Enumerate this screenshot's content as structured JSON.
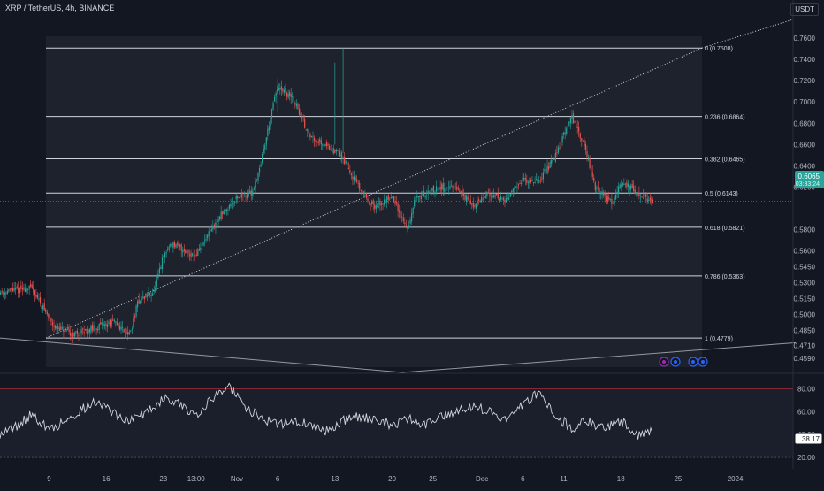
{
  "header": {
    "title": "XRP / TetherUS, 4h, BINANCE",
    "currency": "USDT"
  },
  "price_label": {
    "value": "0.6065",
    "countdown": "03:33:24",
    "color": "#26a69a"
  },
  "rsi_label": {
    "value": "38.17"
  },
  "colors": {
    "background": "#131722",
    "up": "#26a69a",
    "down": "#ef5350",
    "fib_zone": "#1e222d",
    "line": "#d1d4dc",
    "rsi_upper": "#f23645"
  },
  "events": [
    {
      "icon": "lightning-icon",
      "color": "#9c27b0"
    },
    {
      "icon": "flag-us-icon",
      "color": "#2962ff"
    },
    {
      "icon": "flag-us-icon",
      "color": "#2962ff"
    },
    {
      "icon": "flag-us-icon",
      "color": "#2962ff"
    }
  ],
  "chart_data": [
    {
      "type": "candlestick",
      "title": "XRP / TetherUS, 4h, BINANCE",
      "ylim": [
        0.4505,
        0.7776
      ],
      "yticks": [
        "0.7600",
        "0.7400",
        "0.7200",
        "0.7000",
        "0.6800",
        "0.6600",
        "0.6400",
        "0.6200",
        "0.5800",
        "0.5600",
        "0.5450",
        "0.5300",
        "0.5150",
        "0.5000",
        "0.4850",
        "0.4710",
        "0.4590"
      ],
      "xticks": [
        "9",
        "16",
        "23",
        "13:00",
        "Nov",
        "6",
        "13",
        "20",
        "25",
        "Dec",
        "6",
        "11",
        "18",
        "25",
        "2024"
      ],
      "fib_levels": [
        {
          "label": "0 (0.7508)",
          "value": 0.7508
        },
        {
          "label": "0.236 (0.6864)",
          "value": 0.6864
        },
        {
          "label": "0.382 (0.6465)",
          "value": 0.6465
        },
        {
          "label": "0.5 (0.6143)",
          "value": 0.6143
        },
        {
          "label": "0.618 (0.5821)",
          "value": 0.5821
        },
        {
          "label": "0.786 (0.5363)",
          "value": 0.5363
        },
        {
          "label": "1 (0.4779)",
          "value": 0.4779
        }
      ],
      "last_price": 0.6065,
      "price_path": [
        {
          "date": "2023-10-03",
          "close": 0.521
        },
        {
          "date": "2023-10-07",
          "close": 0.525
        },
        {
          "date": "2023-10-09",
          "close": 0.498
        },
        {
          "date": "2023-10-10",
          "close": 0.487
        },
        {
          "date": "2023-10-12",
          "close": 0.481
        },
        {
          "date": "2023-10-15",
          "close": 0.488
        },
        {
          "date": "2023-10-17",
          "close": 0.493
        },
        {
          "date": "2023-10-19",
          "close": 0.481
        },
        {
          "date": "2023-10-20",
          "close": 0.512
        },
        {
          "date": "2023-10-22",
          "close": 0.522
        },
        {
          "date": "2023-10-23",
          "close": 0.552
        },
        {
          "date": "2023-10-24",
          "close": 0.567
        },
        {
          "date": "2023-10-27",
          "close": 0.555
        },
        {
          "date": "2023-10-30",
          "close": 0.592
        },
        {
          "date": "2023-11-01",
          "close": 0.61
        },
        {
          "date": "2023-11-03",
          "close": 0.615
        },
        {
          "date": "2023-11-04",
          "close": 0.642
        },
        {
          "date": "2023-11-06",
          "close": 0.713
        },
        {
          "date": "2023-11-08",
          "close": 0.703
        },
        {
          "date": "2023-11-10",
          "close": 0.668
        },
        {
          "date": "2023-11-12",
          "close": 0.66
        },
        {
          "date": "2023-11-14",
          "close": 0.648
        },
        {
          "date": "2023-11-16",
          "close": 0.62
        },
        {
          "date": "2023-11-18",
          "close": 0.6
        },
        {
          "date": "2023-11-20",
          "close": 0.612
        },
        {
          "date": "2023-11-22",
          "close": 0.58
        },
        {
          "date": "2023-11-23",
          "close": 0.61
        },
        {
          "date": "2023-11-26",
          "close": 0.62
        },
        {
          "date": "2023-11-28",
          "close": 0.618
        },
        {
          "date": "2023-11-30",
          "close": 0.603
        },
        {
          "date": "2023-12-02",
          "close": 0.614
        },
        {
          "date": "2023-12-04",
          "close": 0.607
        },
        {
          "date": "2023-12-06",
          "close": 0.627
        },
        {
          "date": "2023-12-08",
          "close": 0.626
        },
        {
          "date": "2023-12-10",
          "close": 0.647
        },
        {
          "date": "2023-12-12",
          "close": 0.688
        },
        {
          "date": "2023-12-14",
          "close": 0.65
        },
        {
          "date": "2023-12-15",
          "close": 0.618
        },
        {
          "date": "2023-12-17",
          "close": 0.605
        },
        {
          "date": "2023-12-18",
          "close": 0.625
        },
        {
          "date": "2023-12-20",
          "close": 0.615
        },
        {
          "date": "2023-12-22",
          "close": 0.606
        }
      ]
    },
    {
      "type": "line",
      "series": [
        {
          "values": [
            41,
            47,
            58,
            44,
            52,
            62,
            70,
            58,
            52,
            60,
            72,
            66,
            58,
            71,
            84,
            63,
            55,
            49,
            52,
            48,
            43,
            52,
            56,
            52,
            49,
            54,
            48,
            57,
            61,
            66,
            59,
            53,
            66,
            78,
            56,
            46,
            52,
            45,
            52,
            40,
            42
          ]
        }
      ],
      "ylim": [
        10,
        92
      ],
      "yticks": [
        "80.00",
        "60.00",
        "40.00",
        "20.00"
      ]
    }
  ]
}
